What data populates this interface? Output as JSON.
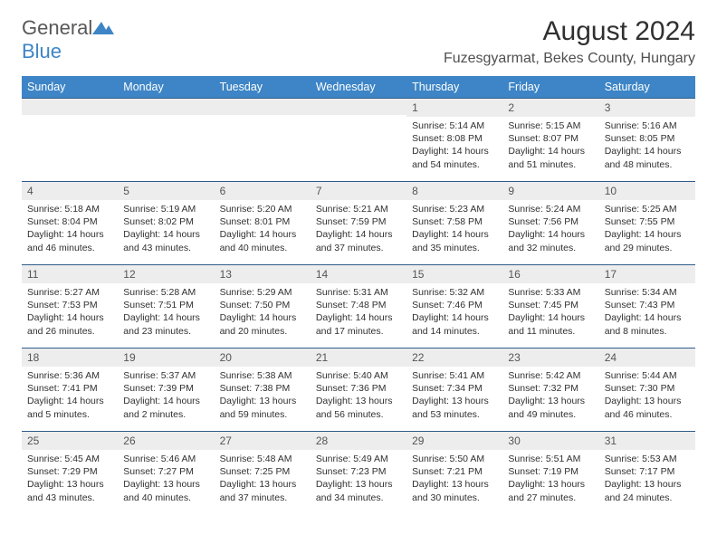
{
  "logo": {
    "word1": "General",
    "word2": "Blue"
  },
  "title": "August 2024",
  "location": "Fuzesgyarmat, Bekes County, Hungary",
  "header_bg": "#3d85c6",
  "dayHeaders": [
    "Sunday",
    "Monday",
    "Tuesday",
    "Wednesday",
    "Thursday",
    "Friday",
    "Saturday"
  ],
  "style": {
    "header_fontsize": 12.5,
    "daynum_bg": "#ededed",
    "daynum_border": "#2f5b8a",
    "cell_fontsize": 10.5,
    "title_fontsize": 30,
    "location_fontsize": 16
  },
  "weeks": [
    [
      null,
      null,
      null,
      null,
      {
        "n": "1",
        "sr": "5:14 AM",
        "ss": "8:08 PM",
        "dl": "14 hours and 54 minutes."
      },
      {
        "n": "2",
        "sr": "5:15 AM",
        "ss": "8:07 PM",
        "dl": "14 hours and 51 minutes."
      },
      {
        "n": "3",
        "sr": "5:16 AM",
        "ss": "8:05 PM",
        "dl": "14 hours and 48 minutes."
      }
    ],
    [
      {
        "n": "4",
        "sr": "5:18 AM",
        "ss": "8:04 PM",
        "dl": "14 hours and 46 minutes."
      },
      {
        "n": "5",
        "sr": "5:19 AM",
        "ss": "8:02 PM",
        "dl": "14 hours and 43 minutes."
      },
      {
        "n": "6",
        "sr": "5:20 AM",
        "ss": "8:01 PM",
        "dl": "14 hours and 40 minutes."
      },
      {
        "n": "7",
        "sr": "5:21 AM",
        "ss": "7:59 PM",
        "dl": "14 hours and 37 minutes."
      },
      {
        "n": "8",
        "sr": "5:23 AM",
        "ss": "7:58 PM",
        "dl": "14 hours and 35 minutes."
      },
      {
        "n": "9",
        "sr": "5:24 AM",
        "ss": "7:56 PM",
        "dl": "14 hours and 32 minutes."
      },
      {
        "n": "10",
        "sr": "5:25 AM",
        "ss": "7:55 PM",
        "dl": "14 hours and 29 minutes."
      }
    ],
    [
      {
        "n": "11",
        "sr": "5:27 AM",
        "ss": "7:53 PM",
        "dl": "14 hours and 26 minutes."
      },
      {
        "n": "12",
        "sr": "5:28 AM",
        "ss": "7:51 PM",
        "dl": "14 hours and 23 minutes."
      },
      {
        "n": "13",
        "sr": "5:29 AM",
        "ss": "7:50 PM",
        "dl": "14 hours and 20 minutes."
      },
      {
        "n": "14",
        "sr": "5:31 AM",
        "ss": "7:48 PM",
        "dl": "14 hours and 17 minutes."
      },
      {
        "n": "15",
        "sr": "5:32 AM",
        "ss": "7:46 PM",
        "dl": "14 hours and 14 minutes."
      },
      {
        "n": "16",
        "sr": "5:33 AM",
        "ss": "7:45 PM",
        "dl": "14 hours and 11 minutes."
      },
      {
        "n": "17",
        "sr": "5:34 AM",
        "ss": "7:43 PM",
        "dl": "14 hours and 8 minutes."
      }
    ],
    [
      {
        "n": "18",
        "sr": "5:36 AM",
        "ss": "7:41 PM",
        "dl": "14 hours and 5 minutes."
      },
      {
        "n": "19",
        "sr": "5:37 AM",
        "ss": "7:39 PM",
        "dl": "14 hours and 2 minutes."
      },
      {
        "n": "20",
        "sr": "5:38 AM",
        "ss": "7:38 PM",
        "dl": "13 hours and 59 minutes."
      },
      {
        "n": "21",
        "sr": "5:40 AM",
        "ss": "7:36 PM",
        "dl": "13 hours and 56 minutes."
      },
      {
        "n": "22",
        "sr": "5:41 AM",
        "ss": "7:34 PM",
        "dl": "13 hours and 53 minutes."
      },
      {
        "n": "23",
        "sr": "5:42 AM",
        "ss": "7:32 PM",
        "dl": "13 hours and 49 minutes."
      },
      {
        "n": "24",
        "sr": "5:44 AM",
        "ss": "7:30 PM",
        "dl": "13 hours and 46 minutes."
      }
    ],
    [
      {
        "n": "25",
        "sr": "5:45 AM",
        "ss": "7:29 PM",
        "dl": "13 hours and 43 minutes."
      },
      {
        "n": "26",
        "sr": "5:46 AM",
        "ss": "7:27 PM",
        "dl": "13 hours and 40 minutes."
      },
      {
        "n": "27",
        "sr": "5:48 AM",
        "ss": "7:25 PM",
        "dl": "13 hours and 37 minutes."
      },
      {
        "n": "28",
        "sr": "5:49 AM",
        "ss": "7:23 PM",
        "dl": "13 hours and 34 minutes."
      },
      {
        "n": "29",
        "sr": "5:50 AM",
        "ss": "7:21 PM",
        "dl": "13 hours and 30 minutes."
      },
      {
        "n": "30",
        "sr": "5:51 AM",
        "ss": "7:19 PM",
        "dl": "13 hours and 27 minutes."
      },
      {
        "n": "31",
        "sr": "5:53 AM",
        "ss": "7:17 PM",
        "dl": "13 hours and 24 minutes."
      }
    ]
  ],
  "labels": {
    "sunrise": "Sunrise:",
    "sunset": "Sunset:",
    "daylight": "Daylight:"
  }
}
